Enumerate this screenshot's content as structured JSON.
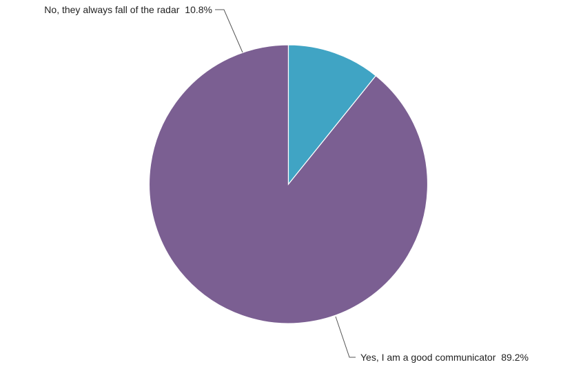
{
  "chart_data": {
    "type": "pie",
    "start_angle_deg": 0,
    "direction": "counterclockwise",
    "slices": [
      {
        "label": "Yes, I am a good communicator",
        "value": 89.2,
        "display": "89.2%",
        "color": "#7b5f92"
      },
      {
        "label": "No, they always fall of the radar",
        "value": 10.8,
        "display": "10.8%",
        "color": "#40a4c4"
      }
    ]
  }
}
